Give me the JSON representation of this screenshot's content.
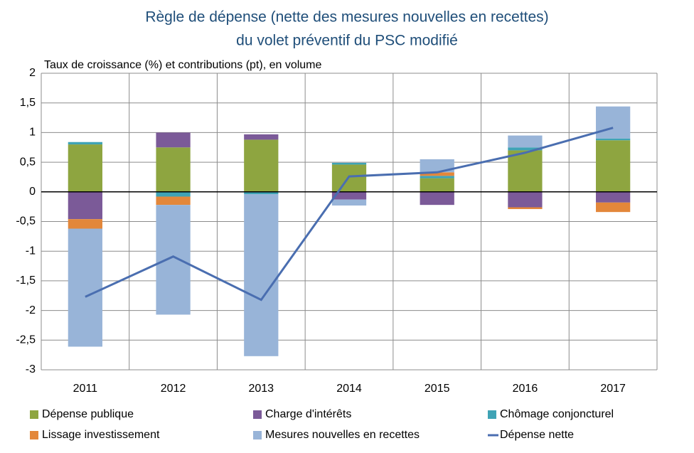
{
  "chart_data": {
    "type": "bar",
    "stacked": true,
    "title": "Règle de dépense (nette des mesures nouvelles en recettes)",
    "subtitle": "du volet préventif du PSC modifié",
    "ylabel": "Taux de croissance (%) et contributions (pt), en volume",
    "categories": [
      "2011",
      "2012",
      "2013",
      "2014",
      "2015",
      "2016",
      "2017"
    ],
    "series": [
      {
        "name": "Dépense publique",
        "color": "#8ea540",
        "values": [
          0.8,
          0.75,
          0.88,
          0.46,
          0.23,
          0.7,
          0.87
        ]
      },
      {
        "name": "Charge d'intérêts",
        "color": "#7b5a98",
        "values": [
          -0.46,
          0.25,
          0.09,
          -0.13,
          -0.22,
          -0.26,
          -0.18
        ]
      },
      {
        "name": "Chômage conjoncturel",
        "color": "#3fa3b5",
        "values": [
          0.04,
          -0.08,
          -0.04,
          0.03,
          0.04,
          0.05,
          0.03
        ]
      },
      {
        "name": "Lissage investissement",
        "color": "#e3873a",
        "values": [
          -0.16,
          -0.14,
          0,
          0,
          0.06,
          -0.03,
          -0.16
        ]
      },
      {
        "name": "Mesures nouvelles en recettes",
        "color": "#98b4d8",
        "values": [
          -1.99,
          -1.85,
          -2.73,
          -0.1,
          0.22,
          0.2,
          0.54
        ]
      },
      {
        "name": "Dépense nette",
        "type": "line",
        "color": "#4a6eb0",
        "values": [
          -1.77,
          -1.09,
          -1.82,
          0.26,
          0.33,
          0.66,
          1.08
        ]
      }
    ],
    "ylim": [
      -3,
      2
    ],
    "yticks": [
      -3,
      {
        "value": -2.5,
        "label": "-2,5"
      },
      -2,
      {
        "value": -1.5,
        "label": "-1,5"
      },
      -1,
      {
        "value": -0.5,
        "label": "-0,5"
      },
      0,
      {
        "value": 0.5,
        "label": "0,5"
      },
      1,
      {
        "value": 1.5,
        "label": "1,5"
      },
      2
    ],
    "grid": true
  }
}
